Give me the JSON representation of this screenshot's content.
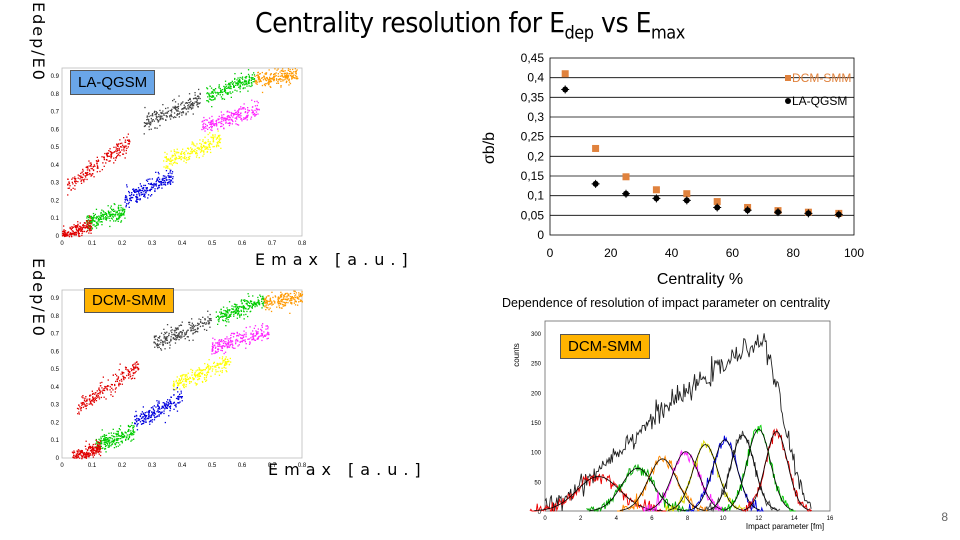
{
  "slide": {
    "title_main": "Centrality resolution for E",
    "title_sub1": "dep",
    "title_mid": " vs E",
    "title_sub2": "max",
    "page_number": "8",
    "caption": "Dependence of resolution of impact parameter on centrality"
  },
  "scatter_top": {
    "tag": "LA-QGSM",
    "y_axis_label": "Edep/E0",
    "x_axis_label": "Emax [a.u.]",
    "y_ticks": [
      "0.9",
      "0.8",
      "0.7",
      "0.6",
      "0.5",
      "0.4",
      "0.3",
      "0.2",
      "0.1",
      "0"
    ],
    "x_ticks": [
      "0",
      "0.1",
      "0.2",
      "0.3",
      "0.4",
      "0.5",
      "0.6",
      "0.7",
      "0.8"
    ]
  },
  "scatter_bottom": {
    "tag": "DCM-SMM",
    "y_axis_label": "Edep/E0",
    "x_axis_label": "Emax [a.u.]",
    "y_ticks": [
      "0.9",
      "0.8",
      "0.7",
      "0.6",
      "0.5",
      "0.4",
      "0.3",
      "0.2",
      "0.1",
      "0"
    ],
    "x_ticks": [
      "0",
      "0.1",
      "0.2",
      "0.3",
      "0.4",
      "0.5",
      "0.6",
      "0.7",
      "0.8"
    ]
  },
  "resolution_chart": {
    "ylabel": "σb/b",
    "xlabel": "Centrality %",
    "y_ticks": [
      "0,45",
      "0,4",
      "0,35",
      "0,3",
      "0,25",
      "0,2",
      "0,15",
      "0,1",
      "0,05",
      "0"
    ],
    "x_ticks": [
      "0",
      "20",
      "40",
      "60",
      "80",
      "100"
    ]
  },
  "histogram": {
    "tag": "DCM-SMM",
    "ylabel": "counts",
    "xlabel": "Impact parameter [fm]",
    "y_ticks": [
      "300",
      "250",
      "200",
      "150",
      "100",
      "50",
      "0"
    ],
    "x_ticks": [
      "0",
      "2",
      "4",
      "6",
      "8",
      "10",
      "12",
      "14",
      "16"
    ]
  },
  "colors": {
    "dcm": "#e0823d",
    "laqgsm": "#000000",
    "tag_blue": "#6aa6e8",
    "tag_orange": "#ffb300"
  },
  "chart_data": [
    {
      "type": "scatter",
      "title": "",
      "xlabel": "Centrality %",
      "ylabel": "σb/b",
      "xlim": [
        0,
        100
      ],
      "ylim": [
        0,
        0.45
      ],
      "grid": true,
      "legend": "top-right",
      "series": [
        {
          "name": "DCM-SMM",
          "color": "#e0823d",
          "marker": "square",
          "x": [
            5,
            15,
            25,
            35,
            45,
            55,
            65,
            75,
            85,
            95
          ],
          "y": [
            0.41,
            0.22,
            0.148,
            0.115,
            0.105,
            0.085,
            0.07,
            0.062,
            0.058,
            0.055
          ]
        },
        {
          "name": "LA-QGSM",
          "color": "#000000",
          "marker": "star",
          "x": [
            5,
            15,
            25,
            35,
            45,
            55,
            65,
            75,
            85,
            95
          ],
          "y": [
            0.37,
            0.13,
            0.105,
            0.093,
            0.088,
            0.07,
            0.063,
            0.058,
            0.055,
            0.052
          ]
        }
      ]
    },
    {
      "type": "line",
      "title": "",
      "xlabel": "Impact parameter [fm]",
      "ylabel": "counts",
      "xlim": [
        0,
        16
      ],
      "ylim": [
        0,
        320
      ],
      "series": [
        {
          "color": "#222222",
          "x": [
            0,
            1,
            2,
            3,
            4,
            5,
            6,
            7,
            8,
            9,
            10,
            11,
            12,
            12.5,
            13,
            13.5,
            14,
            14.5,
            15
          ],
          "y": [
            5,
            20,
            45,
            70,
            100,
            125,
            155,
            180,
            200,
            225,
            245,
            265,
            290,
            270,
            210,
            140,
            75,
            30,
            5
          ]
        }
      ]
    }
  ]
}
